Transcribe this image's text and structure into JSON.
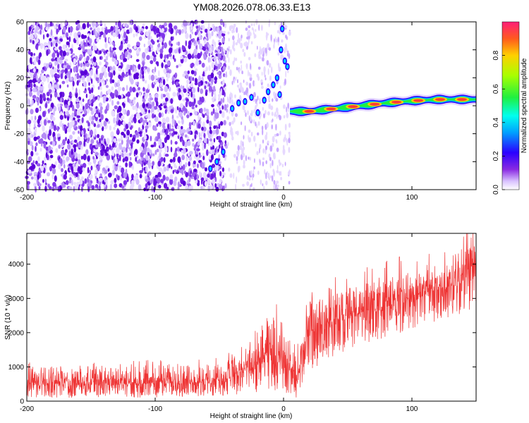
{
  "title": "YM08.2026.078.06.33.E13",
  "chart_data": [
    {
      "type": "heatmap",
      "xlabel": "Height of straight line (km)",
      "ylabel": "Frequency (Hz)",
      "xlim": [
        -200,
        150
      ],
      "ylim": [
        -60,
        60
      ],
      "xticks": [
        -200,
        -100,
        0,
        100
      ],
      "yticks": [
        -60,
        -40,
        -20,
        0,
        20,
        40,
        60
      ],
      "colorbar": {
        "label": "Normalized spectral amplitude",
        "range": [
          0,
          1
        ],
        "ticks": [
          "0.0",
          "0.2",
          "0.4",
          "0.6",
          "0.8"
        ]
      },
      "features": {
        "noise_region_x": [
          -200,
          -45
        ],
        "transition_region_x": [
          -45,
          5
        ],
        "narrowband_signal": {
          "x": [
            5,
            20,
            40,
            60,
            80,
            100,
            120,
            150
          ],
          "y": [
            -4,
            -4,
            -2,
            0,
            2,
            3.5,
            4.5,
            4.5
          ],
          "peak_amplitude": 0.85
        }
      }
    },
    {
      "type": "line",
      "xlabel": "Height of straight line (km)",
      "ylabel": "SNR (10 * v/v)",
      "xlim": [
        -200,
        150
      ],
      "ylim": [
        0,
        4900
      ],
      "xticks": [
        -200,
        -100,
        0,
        100
      ],
      "yticks": [
        0,
        1000,
        2000,
        3000,
        4000
      ],
      "color": "#ee3333",
      "envelope": {
        "x": [
          -200,
          -100,
          -50,
          -30,
          -10,
          0,
          10,
          20,
          50,
          100,
          150
        ],
        "mean": [
          450,
          480,
          520,
          700,
          1300,
          1100,
          400,
          1900,
          2400,
          2900,
          3600
        ],
        "upper": [
          1000,
          1050,
          1100,
          1500,
          2600,
          2300,
          1300,
          2900,
          3300,
          3800,
          4600
        ],
        "lower": [
          100,
          100,
          150,
          200,
          300,
          200,
          100,
          900,
          1500,
          2100,
          2700
        ]
      }
    }
  ]
}
